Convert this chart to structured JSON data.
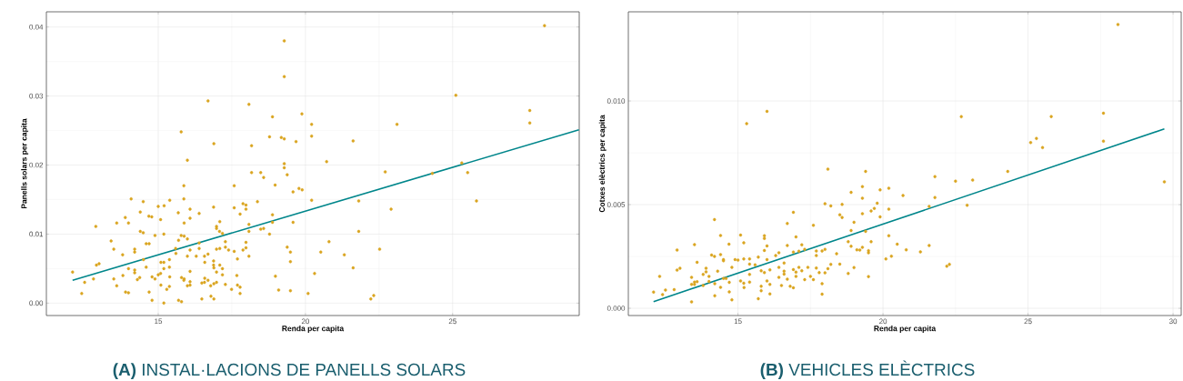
{
  "chart_data": [
    {
      "type": "scatter",
      "title": "**(A)** INSTAL·LACIONS DE PANELLS SOLARS",
      "xlabel": "Renda per capita",
      "ylabel": "Panells solars per capita",
      "xlim": [
        11.2,
        29.3
      ],
      "ylim": [
        -0.0018,
        0.0422
      ],
      "xticks": [
        15,
        20,
        25
      ],
      "yticks": [
        {
          "value": 0,
          "label": "0.00"
        },
        {
          "value": 0.01,
          "label": "0.01"
        },
        {
          "value": 0.02,
          "label": "0.02"
        },
        {
          "value": 0.03,
          "label": "0.03"
        },
        {
          "value": 0.04,
          "label": "0.04"
        }
      ],
      "grid": true,
      "series": [
        {
          "type": "scatter",
          "marker": "circle",
          "color": "#daa520",
          "x": [
            12.09,
            12.4,
            12.5,
            12.8,
            12.88,
            12.9,
            12.99,
            13.4,
            13.49,
            13.49,
            13.59,
            13.59,
            13.79,
            13.8,
            13.88,
            13.89,
            13.99,
            13.99,
            13.99,
            14.08,
            14.2,
            14.2,
            14.2,
            14.2,
            14.29,
            14.37,
            14.39,
            14.39,
            14.49,
            14.49,
            14.5,
            14.59,
            14.59,
            14.69,
            14.68,
            14.69,
            14.78,
            14.79,
            14.79,
            14.89,
            14.89,
            15.0,
            15.0,
            15.08,
            15.08,
            15.09,
            15.09,
            15.19,
            15.19,
            15.19,
            15.19,
            15.2,
            15.29,
            15.38,
            15.38,
            15.39,
            15.39,
            15.38,
            15.6,
            15.59,
            15.68,
            15.69,
            15.69,
            15.78,
            15.78,
            15.79,
            15.79,
            15.87,
            15.87,
            15.88,
            15.88,
            15.87,
            15.88,
            15.99,
            15.99,
            15.99,
            15.99,
            16.08,
            16.08,
            16.08,
            16.08,
            16.08,
            16.08,
            16.29,
            16.39,
            16.39,
            16.39,
            16.48,
            16.48,
            16.57,
            16.57,
            16.58,
            16.58,
            16.69,
            16.69,
            16.69,
            16.78,
            16.79,
            16.88,
            16.89,
            16.88,
            16.88,
            16.89,
            16.89,
            16.89,
            16.98,
            16.98,
            16.98,
            16.98,
            16.98,
            17.08,
            17.09,
            17.09,
            17.09,
            17.18,
            17.18,
            17.18,
            17.28,
            17.28,
            17.28,
            17.39,
            17.49,
            17.58,
            17.58,
            17.58,
            17.67,
            17.69,
            17.69,
            17.78,
            17.78,
            17.78,
            17.88,
            17.88,
            17.98,
            17.98,
            17.98,
            17.98,
            18.08,
            18.08,
            18.08,
            18.08,
            18.17,
            18.17,
            18.37,
            18.48,
            18.48,
            18.58,
            18.58,
            18.78,
            18.78,
            18.88,
            18.88,
            18.88,
            18.97,
            18.98,
            19.09,
            19.18,
            19.28,
            19.28,
            19.28,
            19.28,
            19.28,
            19.38,
            19.38,
            19.49,
            19.49,
            19.49,
            19.58,
            19.58,
            19.68,
            19.78,
            19.89,
            19.88,
            20.09,
            20.21,
            20.21,
            20.21,
            20.31,
            20.52,
            20.72,
            20.8,
            21.32,
            21.62,
            21.62,
            21.81,
            21.81,
            22.22,
            22.32,
            22.52,
            22.71,
            22.91,
            23.11,
            24.31,
            25.11,
            25.31,
            25.51,
            25.81,
            27.62,
            27.62,
            28.12
          ],
          "values": [
            0.0045,
            0.0014,
            0.003,
            0.0035,
            0.0111,
            0.0055,
            0.0057,
            0.009,
            0.0078,
            0.0035,
            0.0116,
            0.0025,
            0.007,
            0.004,
            0.0124,
            0.0016,
            0.0116,
            0.0015,
            0.005,
            0.0151,
            0.0078,
            0.0074,
            0.0048,
            0.0044,
            0.0034,
            0.0037,
            0.0132,
            0.0104,
            0.0102,
            0.0147,
            0.0063,
            0.0052,
            0.0086,
            0.0086,
            0.0126,
            0.0016,
            0.0125,
            0.0004,
            0.0038,
            0.0098,
            0.0035,
            0.014,
            0.0041,
            0.0043,
            0.0121,
            0.0026,
            0.0059,
            0.0,
            0.01,
            0.0059,
            0.005,
            0.0141,
            0.002,
            0.0063,
            0.0052,
            0.0038,
            0.0149,
            0.0024,
            0.0072,
            0.0079,
            0.0131,
            0.0091,
            0.0004,
            0.0248,
            0.0098,
            0.0002,
            0.0037,
            0.017,
            0.0151,
            0.0116,
            0.0097,
            0.0033,
            0.0035,
            0.0207,
            0.0093,
            0.0068,
            0.0025,
            0.0136,
            0.0123,
            0.0077,
            0.0046,
            0.0026,
            0.0031,
            0.0068,
            0.013,
            0.0079,
            0.0087,
            0.0006,
            0.0029,
            0.003,
            0.0068,
            0.0059,
            0.0036,
            0.0293,
            0.0071,
            0.0033,
            0.0025,
            0.001,
            0.0139,
            0.0231,
            0.0061,
            0.0055,
            0.0051,
            0.0028,
            0.0006,
            0.0111,
            0.0108,
            0.0078,
            0.0045,
            0.003,
            0.0104,
            0.0118,
            0.0079,
            0.0055,
            0.0101,
            0.005,
            0.0041,
            0.0089,
            0.0081,
            0.0027,
            0.0077,
            0.002,
            0.017,
            0.0138,
            0.0075,
            0.004,
            0.0064,
            0.0026,
            0.0129,
            0.0023,
            0.0014,
            0.0144,
            0.0077,
            0.0142,
            0.0136,
            0.0088,
            0.008,
            0.0288,
            0.0114,
            0.0104,
            0.0068,
            0.0228,
            0.0189,
            0.0147,
            0.0189,
            0.0107,
            0.0182,
            0.0108,
            0.0241,
            0.01,
            0.027,
            0.0128,
            0.0117,
            0.0171,
            0.0039,
            0.0019,
            0.024,
            0.038,
            0.0328,
            0.0238,
            0.0202,
            0.0196,
            0.0186,
            0.0081,
            0.0074,
            0.006,
            0.0018,
            0.0161,
            0.0117,
            0.0234,
            0.0166,
            0.0164,
            0.0274,
            0.0014,
            0.0259,
            0.0242,
            0.0149,
            0.0043,
            0.0074,
            0.0205,
            0.0089,
            0.007,
            0.0235,
            0.0051,
            0.0148,
            0.0104,
            0.0006,
            0.0011,
            0.0078,
            0.019,
            0.0136,
            0.0259,
            0.0188,
            0.0301,
            0.0203,
            0.0189,
            0.0148,
            0.0279,
            0.0261,
            0.0402
          ]
        },
        {
          "type": "line",
          "color": "#00868b",
          "x": [
            12.09,
            29.29
          ],
          "values": [
            0.0033,
            0.0251
          ]
        }
      ]
    },
    {
      "type": "scatter",
      "title": "**(B)** VEHICLES ELÈCTRICS",
      "xlabel": "Renda per capita",
      "ylabel": "Cotxes elèctrics per capita",
      "xlim": [
        11.22,
        30.28
      ],
      "ylim": [
        -0.00035,
        0.0143
      ],
      "xticks": [
        15,
        20,
        25,
        30
      ],
      "yticks": [
        {
          "value": 0,
          "label": "0.000"
        },
        {
          "value": 0.005,
          "label": "0.005"
        },
        {
          "value": 0.01,
          "label": "0.010"
        }
      ],
      "grid": true,
      "series": [
        {
          "type": "scatter",
          "marker": "circle",
          "color": "#daa520",
          "x": [
            12.09,
            12.3,
            12.4,
            12.5,
            12.8,
            12.9,
            12.9,
            13.0,
            13.4,
            13.4,
            13.4,
            13.5,
            13.5,
            13.5,
            13.59,
            13.59,
            13.8,
            13.8,
            13.9,
            13.9,
            14.0,
            14.0,
            14.09,
            14.19,
            14.19,
            14.2,
            14.2,
            14.3,
            14.4,
            14.4,
            14.4,
            14.5,
            14.5,
            14.5,
            14.59,
            14.69,
            14.7,
            14.7,
            14.79,
            14.79,
            14.9,
            15.0,
            15.09,
            15.09,
            15.2,
            15.2,
            15.2,
            15.21,
            15.3,
            15.4,
            15.4,
            15.4,
            15.4,
            15.59,
            15.7,
            15.7,
            15.8,
            15.8,
            15.8,
            15.91,
            15.91,
            15.91,
            15.91,
            16.0,
            16.0,
            16.0,
            16.0,
            16.1,
            16.1,
            16.1,
            16.3,
            16.41,
            16.41,
            16.41,
            16.5,
            16.59,
            16.59,
            16.59,
            16.7,
            16.7,
            16.7,
            16.8,
            16.91,
            16.91,
            16.91,
            16.91,
            17.0,
            17.0,
            17.0,
            17.1,
            17.1,
            17.2,
            17.2,
            17.3,
            17.3,
            17.41,
            17.5,
            17.6,
            17.6,
            17.7,
            17.7,
            17.7,
            17.8,
            17.9,
            17.9,
            17.9,
            18.0,
            18.0,
            18.0,
            18.1,
            18.1,
            18.2,
            18.2,
            18.4,
            18.51,
            18.51,
            18.59,
            18.59,
            18.8,
            18.8,
            18.9,
            18.9,
            18.9,
            19.0,
            19.0,
            19.1,
            19.2,
            19.29,
            19.29,
            19.29,
            19.29,
            19.4,
            19.4,
            19.5,
            19.5,
            19.5,
            19.59,
            19.59,
            19.7,
            19.8,
            19.9,
            19.9,
            20.1,
            20.2,
            20.2,
            20.2,
            20.29,
            20.49,
            20.69,
            20.8,
            21.29,
            21.59,
            21.59,
            21.79,
            21.79,
            22.2,
            22.29,
            22.5,
            22.7,
            22.9,
            23.09,
            24.3,
            25.09,
            25.29,
            25.5,
            25.8,
            27.6,
            27.6,
            28.1,
            29.7
          ],
          "values": [
            0.00078,
            0.00154,
            0.00066,
            0.00088,
            0.0009,
            0.00281,
            0.00184,
            0.00193,
            0.00031,
            0.00149,
            0.00115,
            0.00307,
            0.00126,
            0.00115,
            0.00222,
            0.00128,
            0.0011,
            0.00163,
            0.00193,
            0.00176,
            0.00154,
            0.00129,
            0.00257,
            0.00428,
            0.0025,
            0.0006,
            0.00119,
            0.00179,
            0.00351,
            0.00259,
            0.00101,
            0.00235,
            0.00229,
            0.00144,
            0.00144,
            0.00309,
            0.00125,
            0.00079,
            0.00197,
            0.00041,
            0.00235,
            0.00232,
            0.00353,
            0.00132,
            0.00316,
            0.00238,
            0.00121,
            0.001,
            0.00891,
            0.00238,
            0.00213,
            0.00163,
            0.00126,
            0.00209,
            0.00247,
            0.00046,
            0.00181,
            0.00106,
            0.00085,
            0.0035,
            0.00337,
            0.00279,
            0.00172,
            0.0095,
            0.00301,
            0.00235,
            0.00132,
            0.00185,
            0.00069,
            0.00115,
            0.00254,
            0.00268,
            0.00197,
            0.00149,
            0.0011,
            0.00218,
            0.00179,
            0.00165,
            0.00409,
            0.00303,
            0.0014,
            0.00106,
            0.00463,
            0.00271,
            0.00187,
            0.00099,
            0.00344,
            0.00174,
            0.00154,
            0.00275,
            0.00197,
            0.00306,
            0.00181,
            0.00284,
            0.00138,
            0.00197,
            0.00154,
            0.004,
            0.00138,
            0.00276,
            0.00254,
            0.00194,
            0.00172,
            0.00276,
            0.00119,
            0.00068,
            0.00504,
            0.00284,
            0.00171,
            0.00671,
            0.00191,
            0.00494,
            0.00212,
            0.00263,
            0.00451,
            0.00213,
            0.00501,
            0.00438,
            0.00321,
            0.00168,
            0.00559,
            0.00375,
            0.00299,
            0.00415,
            0.00196,
            0.00282,
            0.00281,
            0.00587,
            0.00531,
            0.00456,
            0.00294,
            0.0066,
            0.00371,
            0.00278,
            0.00268,
            0.00153,
            0.00469,
            0.00321,
            0.00482,
            0.00507,
            0.00571,
            0.00441,
            0.00238,
            0.00579,
            0.00478,
            0.0035,
            0.00251,
            0.00309,
            0.00544,
            0.00282,
            0.00272,
            0.00491,
            0.00303,
            0.00635,
            0.00534,
            0.00203,
            0.00212,
            0.00613,
            0.00924,
            0.00497,
            0.00618,
            0.0066,
            0.00799,
            0.00819,
            0.00775,
            0.00925,
            0.00941,
            0.00806,
            0.01369,
            0.0061
          ]
        },
        {
          "type": "line",
          "color": "#00868b",
          "x": [
            12.09,
            29.7
          ],
          "values": [
            0.00032,
            0.00865
          ]
        }
      ]
    }
  ]
}
